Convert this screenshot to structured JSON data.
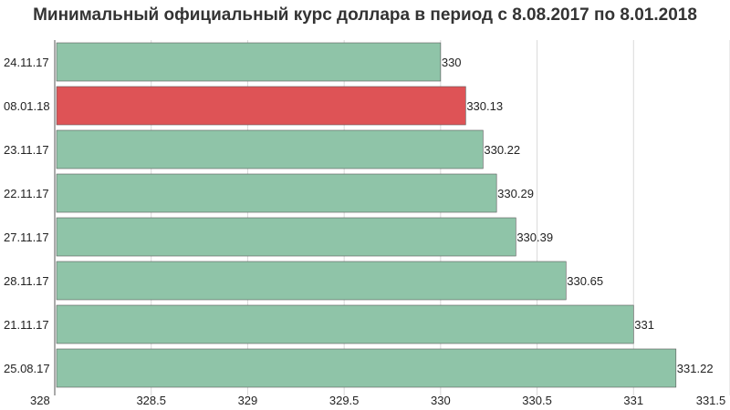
{
  "chart_data": {
    "type": "bar",
    "orientation": "horizontal",
    "title": "Минимальный официальный курс доллара в период с 8.08.2017 по 8.01.2018",
    "xlabel": "",
    "ylabel": "",
    "xlim": [
      328,
      331.5
    ],
    "x_ticks": [
      "328",
      "328.5",
      "329",
      "329.5",
      "330",
      "330.5",
      "331",
      "331.5"
    ],
    "x_tick_values": [
      328,
      328.5,
      329,
      329.5,
      330,
      330.5,
      331,
      331.5
    ],
    "categories": [
      "24.11.17",
      "08.01.18",
      "23.11.17",
      "22.11.17",
      "27.11.17",
      "28.11.17",
      "21.11.17",
      "25.08.17"
    ],
    "values": [
      330,
      330.13,
      330.22,
      330.29,
      330.39,
      330.65,
      331,
      331.22
    ],
    "value_labels": [
      "330",
      "330.13",
      "330.22",
      "330.29",
      "330.39",
      "330.65",
      "331",
      "331.22"
    ],
    "highlight_index": 1,
    "grid": true,
    "legend": "none",
    "colors": {
      "bar": "#8fc4a8",
      "highlight": "#de5356",
      "grid": "#d9d9d9",
      "axis": "#555555"
    }
  }
}
